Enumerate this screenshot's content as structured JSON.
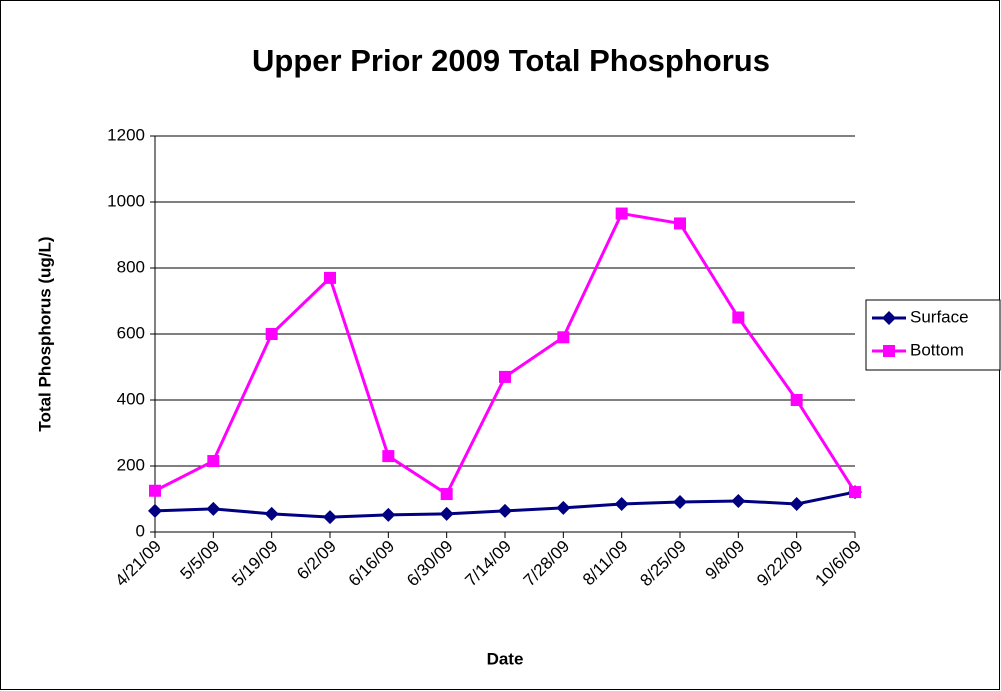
{
  "chart_data": {
    "type": "line",
    "title": "Upper Prior 2009 Total Phosphorus",
    "x_label": "Date",
    "y_label": "Total Phosphorus (ug/L)",
    "categories": [
      "4/21/09",
      "5/5/09",
      "5/19/09",
      "6/2/09",
      "6/16/09",
      "6/30/09",
      "7/14/09",
      "7/28/09",
      "8/11/09",
      "8/25/09",
      "9/8/09",
      "9/22/09",
      "10/6/09"
    ],
    "series": [
      {
        "name": "Surface",
        "color": "#000080",
        "marker": "diamond",
        "values": [
          64,
          70,
          55,
          45,
          52,
          55,
          64,
          73,
          85,
          91,
          94,
          85,
          121
        ]
      },
      {
        "name": "Bottom",
        "color": "#ff00ff",
        "marker": "square",
        "values": [
          125,
          215,
          600,
          770,
          230,
          115,
          470,
          590,
          965,
          935,
          650,
          400,
          121
        ]
      }
    ],
    "ylim": [
      0,
      1200
    ],
    "yticks": [
      0,
      200,
      400,
      600,
      800,
      1000,
      1200
    ],
    "grid": true,
    "legend": "right"
  }
}
